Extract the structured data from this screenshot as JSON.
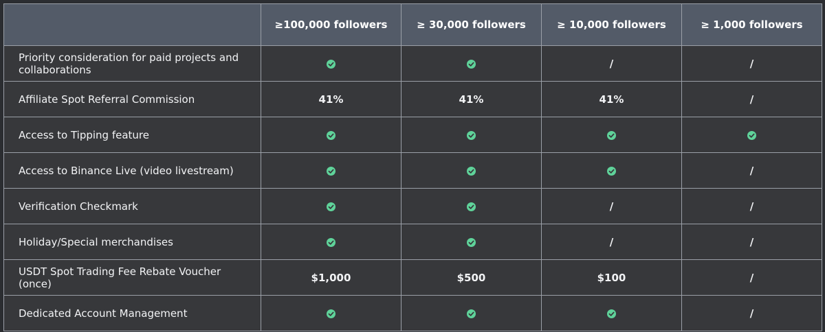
{
  "header": {
    "corner": "",
    "tiers": [
      "≥100,000 followers",
      "≥ 30,000 followers",
      "≥ 10,000 followers",
      "≥ 1,000 followers"
    ]
  },
  "icons": {
    "check": "check-circle-icon",
    "check_color": "#5fd39a"
  },
  "rows": [
    {
      "feature": "Priority consideration for paid projects and collaborations",
      "cells": [
        "check",
        "check",
        "/",
        "/"
      ]
    },
    {
      "feature": "Affiliate Spot Referral Commission",
      "cells": [
        "41%",
        "41%",
        "41%",
        "/"
      ]
    },
    {
      "feature": "Access to Tipping feature",
      "cells": [
        "check",
        "check",
        "check",
        "check"
      ]
    },
    {
      "feature": "Access to Binance Live (video livestream)",
      "cells": [
        "check",
        "check",
        "check",
        "/"
      ]
    },
    {
      "feature": "Verification Checkmark",
      "cells": [
        "check",
        "check",
        "/",
        "/"
      ]
    },
    {
      "feature": "Holiday/Special merchandises",
      "cells": [
        "check",
        "check",
        "/",
        "/"
      ]
    },
    {
      "feature": "USDT Spot Trading Fee Rebate Voucher (once)",
      "cells": [
        "$1,000",
        "$500",
        "$100",
        "/"
      ]
    },
    {
      "feature": "Dedicated Account Management",
      "cells": [
        "check",
        "check",
        "check",
        "/"
      ]
    }
  ]
}
